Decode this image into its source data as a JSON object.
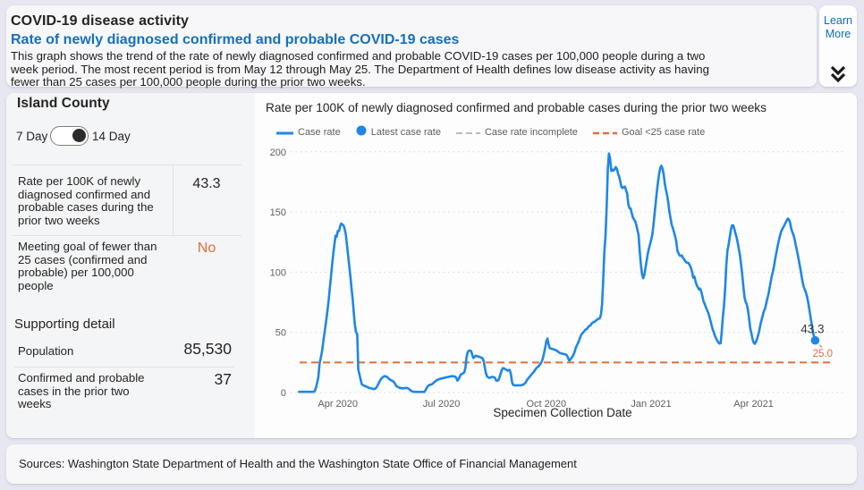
{
  "header": {
    "title": "COVID-19 disease activity",
    "subtitle": "Rate of newly diagnosed confirmed and probable COVID-19 cases",
    "description": "This graph shows the trend of the rate of newly diagnosed confirmed and probable COVID-19 cases per 100,000 people during a two week period. The most recent period is from May 12 through May 25. The Department of Health defines low disease activity as having fewer than 25 cases per 100,000 people during the prior two weeks.",
    "learn_more_label": "Learn More",
    "collapse_icon": "double-chevron-down"
  },
  "panel": {
    "title": "Island County",
    "toggle": {
      "left_label": "7 Day",
      "right_label": "14 Day",
      "selected": "14 Day"
    },
    "stats": [
      {
        "label": "Rate per 100K of newly diagnosed confirmed and probable cases during the prior two weeks",
        "value": "43.3",
        "emphasis": "dark"
      },
      {
        "label": "Meeting goal of fewer than 25 cases (confirmed and probable) per 100,000 people",
        "value": "No",
        "emphasis": "orange"
      }
    ],
    "supporting": {
      "title": "Supporting detail",
      "rows": [
        {
          "label": "Population",
          "value": "85,530"
        },
        {
          "label": "Confirmed and probable cases in the prior two weeks",
          "value": "37"
        }
      ]
    }
  },
  "chart_data": {
    "type": "line",
    "title": "Rate per 100K of newly diagnosed confirmed and probable cases during the prior two weeks",
    "xlabel": "Specimen Collection Date",
    "ylabel": "",
    "ylim": [
      0,
      200
    ],
    "y_ticks": [
      0,
      50,
      100,
      150,
      200
    ],
    "x_ticks": [
      {
        "label": "Apr 2020",
        "date": "2020-04-01"
      },
      {
        "label": "Jul 2020",
        "date": "2020-07-01"
      },
      {
        "label": "Oct 2020",
        "date": "2020-10-01"
      },
      {
        "label": "Jan 2021",
        "date": "2021-01-01"
      },
      {
        "label": "Apr 2021",
        "date": "2021-04-01"
      }
    ],
    "grid": "dotted horizontal",
    "legend_position": "top",
    "legend": [
      {
        "label": "Case rate",
        "swatch": "line",
        "color": "#1e87e8"
      },
      {
        "label": "Latest case rate",
        "swatch": "dot",
        "color": "#1e87e8"
      },
      {
        "label": "Case rate incomplete",
        "swatch": "dash",
        "color": "#b3b0ad"
      },
      {
        "label": "Goal <25 case rate",
        "swatch": "dash",
        "color": "#e66c37"
      }
    ],
    "series": [
      {
        "name": "Case rate",
        "start_date": "2020-02-27",
        "values": [
          0.6,
          0.6,
          0.6,
          0.6,
          0.6,
          0.6,
          0.6,
          0.6,
          0.6,
          0.6,
          0.6,
          0.6,
          0.6,
          0.6,
          1.7,
          4.7,
          8.7,
          13.4,
          24.0,
          28.7,
          33.5,
          40.2,
          47.3,
          54.3,
          61.4,
          68.5,
          76.9,
          87.2,
          96.6,
          106.0,
          115.2,
          123.1,
          130.3,
          129.4,
          134.2,
          134.0,
          138.0,
          140.4,
          139.7,
          138.7,
          136.2,
          131.5,
          122.7,
          114.2,
          105.8,
          96.7,
          86.7,
          77.8,
          66.9,
          56.0,
          50.1,
          48.8,
          18.9,
          15.1,
          10.7,
          7.1,
          6.2,
          5.8,
          5.3,
          4.9,
          4.5,
          4.1,
          3.8,
          3.6,
          3.3,
          3.0,
          2.9,
          3.4,
          4.2,
          6.1,
          8.0,
          9.9,
          11.3,
          12.3,
          13.1,
          13.6,
          13.4,
          13.1,
          12.3,
          11.3,
          10.6,
          10.1,
          9.6,
          9.0,
          7.7,
          5.9,
          5.0,
          4.5,
          4.0,
          3.8,
          3.5,
          3.5,
          3.6,
          3.7,
          3.9,
          3.7,
          3.3,
          2.5,
          1.7,
          1.1,
          0.7,
          0.6,
          0.6,
          0.5,
          0.5,
          0.5,
          0.5,
          0.5,
          0.5,
          0.5,
          0.5,
          2.0,
          3.7,
          5.3,
          6.2,
          6.4,
          6.7,
          7.1,
          8.0,
          8.9,
          9.6,
          10.3,
          10.7,
          11.2,
          11.4,
          11.7,
          11.9,
          12.1,
          12.3,
          12.6,
          12.8,
          13.0,
          13.2,
          13.4,
          13.6,
          13.6,
          13.4,
          13.2,
          12.2,
          9.9,
          11.0,
          13.0,
          15.0,
          15.5,
          15.9,
          16.8,
          20.7,
          29.1,
          33.6,
          34.7,
          34.9,
          34.4,
          31.4,
          28.7,
          29.6,
          30.5,
          30.3,
          30.0,
          29.7,
          29.4,
          29.0,
          28.5,
          26.3,
          21.1,
          16.0,
          13.4,
          12.6,
          12.2,
          12.3,
          13.0,
          13.0,
          12.6,
          12.1,
          10.0,
          9.8,
          10.3,
          12.7,
          15.9,
          18.8,
          20.3,
          20.0,
          19.4,
          18.9,
          18.1,
          18.8,
          18.7,
          14.9,
          8.2,
          6.3,
          6.0,
          6.0,
          6.0,
          6.0,
          6.0,
          6.0,
          6.1,
          6.3,
          6.7,
          7.4,
          8.5,
          10.3,
          11.5,
          12.7,
          13.8,
          15.1,
          16.1,
          17.1,
          18.6,
          20.0,
          20.9,
          21.6,
          22.7,
          24.0,
          25.6,
          28.5,
          32.5,
          37.0,
          42.4,
          44.9,
          40.2,
          37.1,
          36.5,
          36.2,
          36.0,
          35.7,
          35.3,
          34.9,
          34.2,
          33.5,
          32.8,
          32.6,
          32.3,
          32.1,
          31.9,
          31.7,
          31.0,
          29.1,
          26.6,
          27.2,
          28.6,
          30.0,
          31.8,
          34.1,
          37.6,
          39.5,
          41.5,
          43.7,
          46.6,
          48.5,
          49.4,
          50.6,
          51.9,
          52.6,
          53.2,
          54.6,
          55.5,
          56.1,
          57.5,
          58.3,
          58.7,
          59.2,
          60.1,
          60.9,
          61.3,
          61.8,
          64.7,
          73.6,
          94.9,
          116.9,
          130.1,
          154.5,
          186.0,
          198.6,
          194.7,
          184.1,
          185.3,
          184.4,
          185.5,
          187.3,
          185.7,
          181.9,
          179.3,
          175.0,
          170.8,
          169.9,
          170.9,
          171.0,
          168.2,
          165.3,
          156.3,
          153.1,
          153.0,
          149.2,
          145.4,
          143.8,
          142.4,
          139.4,
          135.0,
          130.7,
          117.8,
          106.7,
          98.6,
          95.0,
          97.3,
          103.1,
          109.0,
          114.6,
          119.2,
          122.9,
          126.8,
          130.5,
          138.3,
          147.9,
          157.5,
          166.2,
          174.4,
          181.4,
          186.6,
          188.4,
          186.2,
          181.4,
          173.6,
          168.7,
          164.1,
          158.3,
          150.9,
          145.4,
          139.6,
          136.8,
          133.9,
          130.1,
          126.1,
          118.2,
          115.8,
          113.9,
          113.5,
          113.9,
          111.9,
          110.8,
          109.1,
          108.1,
          107.8,
          107.5,
          105.6,
          103.7,
          100.2,
          95.4,
          96.4,
          92.5,
          89.4,
          87.5,
          85.7,
          86.3,
          84.0,
          80.2,
          75.7,
          73.7,
          71.1,
          68.7,
          66.6,
          63.9,
          60.1,
          56.2,
          52.8,
          50.1,
          47.2,
          45.1,
          43.3,
          41.7,
          40.7,
          41.0,
          49.9,
          62.9,
          72.2,
          86.8,
          105.1,
          117.6,
          122.9,
          128.9,
          134.9,
          138.8,
          139.0,
          136.2,
          132.4,
          129.1,
          124.5,
          119.4,
          114.0,
          106.3,
          97.7,
          88.4,
          79.2,
          75.3,
          73.2,
          68.9,
          61.7,
          53.6,
          49.3,
          44.6,
          41.6,
          40.5,
          41.9,
          44.5,
          47.8,
          51.7,
          56.5,
          60.3,
          64.1,
          67.7,
          69.6,
          73.7,
          78.0,
          81.8,
          86.7,
          92.0,
          97.0,
          100.9,
          105.6,
          111.3,
          116.5,
          121.1,
          125.6,
          129.8,
          133.5,
          135.4,
          137.2,
          139.1,
          141.0,
          142.8,
          144.5,
          143.8,
          141.0,
          136.3,
          133.3,
          131.0,
          127.1,
          122.5,
          117.8,
          113.1,
          108.3,
          103.0,
          97.4,
          91.7,
          87.9,
          85.4,
          82.8,
          79.2,
          74.4,
          68.5,
          62.3,
          56.4,
          50.7,
          46.7,
          43.3
        ]
      }
    ],
    "latest_point": {
      "date": "2021-05-25",
      "value": 43.3,
      "label": "43.3"
    },
    "goal_line": {
      "value": 25,
      "label": "25.0"
    },
    "incomplete_segment": {
      "from_date": "2021-05-25",
      "from_value": 43.3,
      "to_date": "2021-05-31",
      "to_value": 37.5
    }
  },
  "footer": {
    "sources": "Sources: Washington State Department of Health and the Washington State Office of Financial Management"
  },
  "colors": {
    "page_bg": "#e6e7f0",
    "card_bg": "#f7f7f9",
    "pane_bg": "#fdfdfe",
    "panel_bg": "#f4f5f7",
    "text_dark": "#252423",
    "text_gray": "#605e5c",
    "heading_blue": "#1470bf",
    "link_blue": "#0f6cbd",
    "line_blue": "#1e87e8",
    "orange": "#e66c37",
    "rule_gray": "#e1e1e3",
    "grid_gray": "#d4d4d6"
  }
}
